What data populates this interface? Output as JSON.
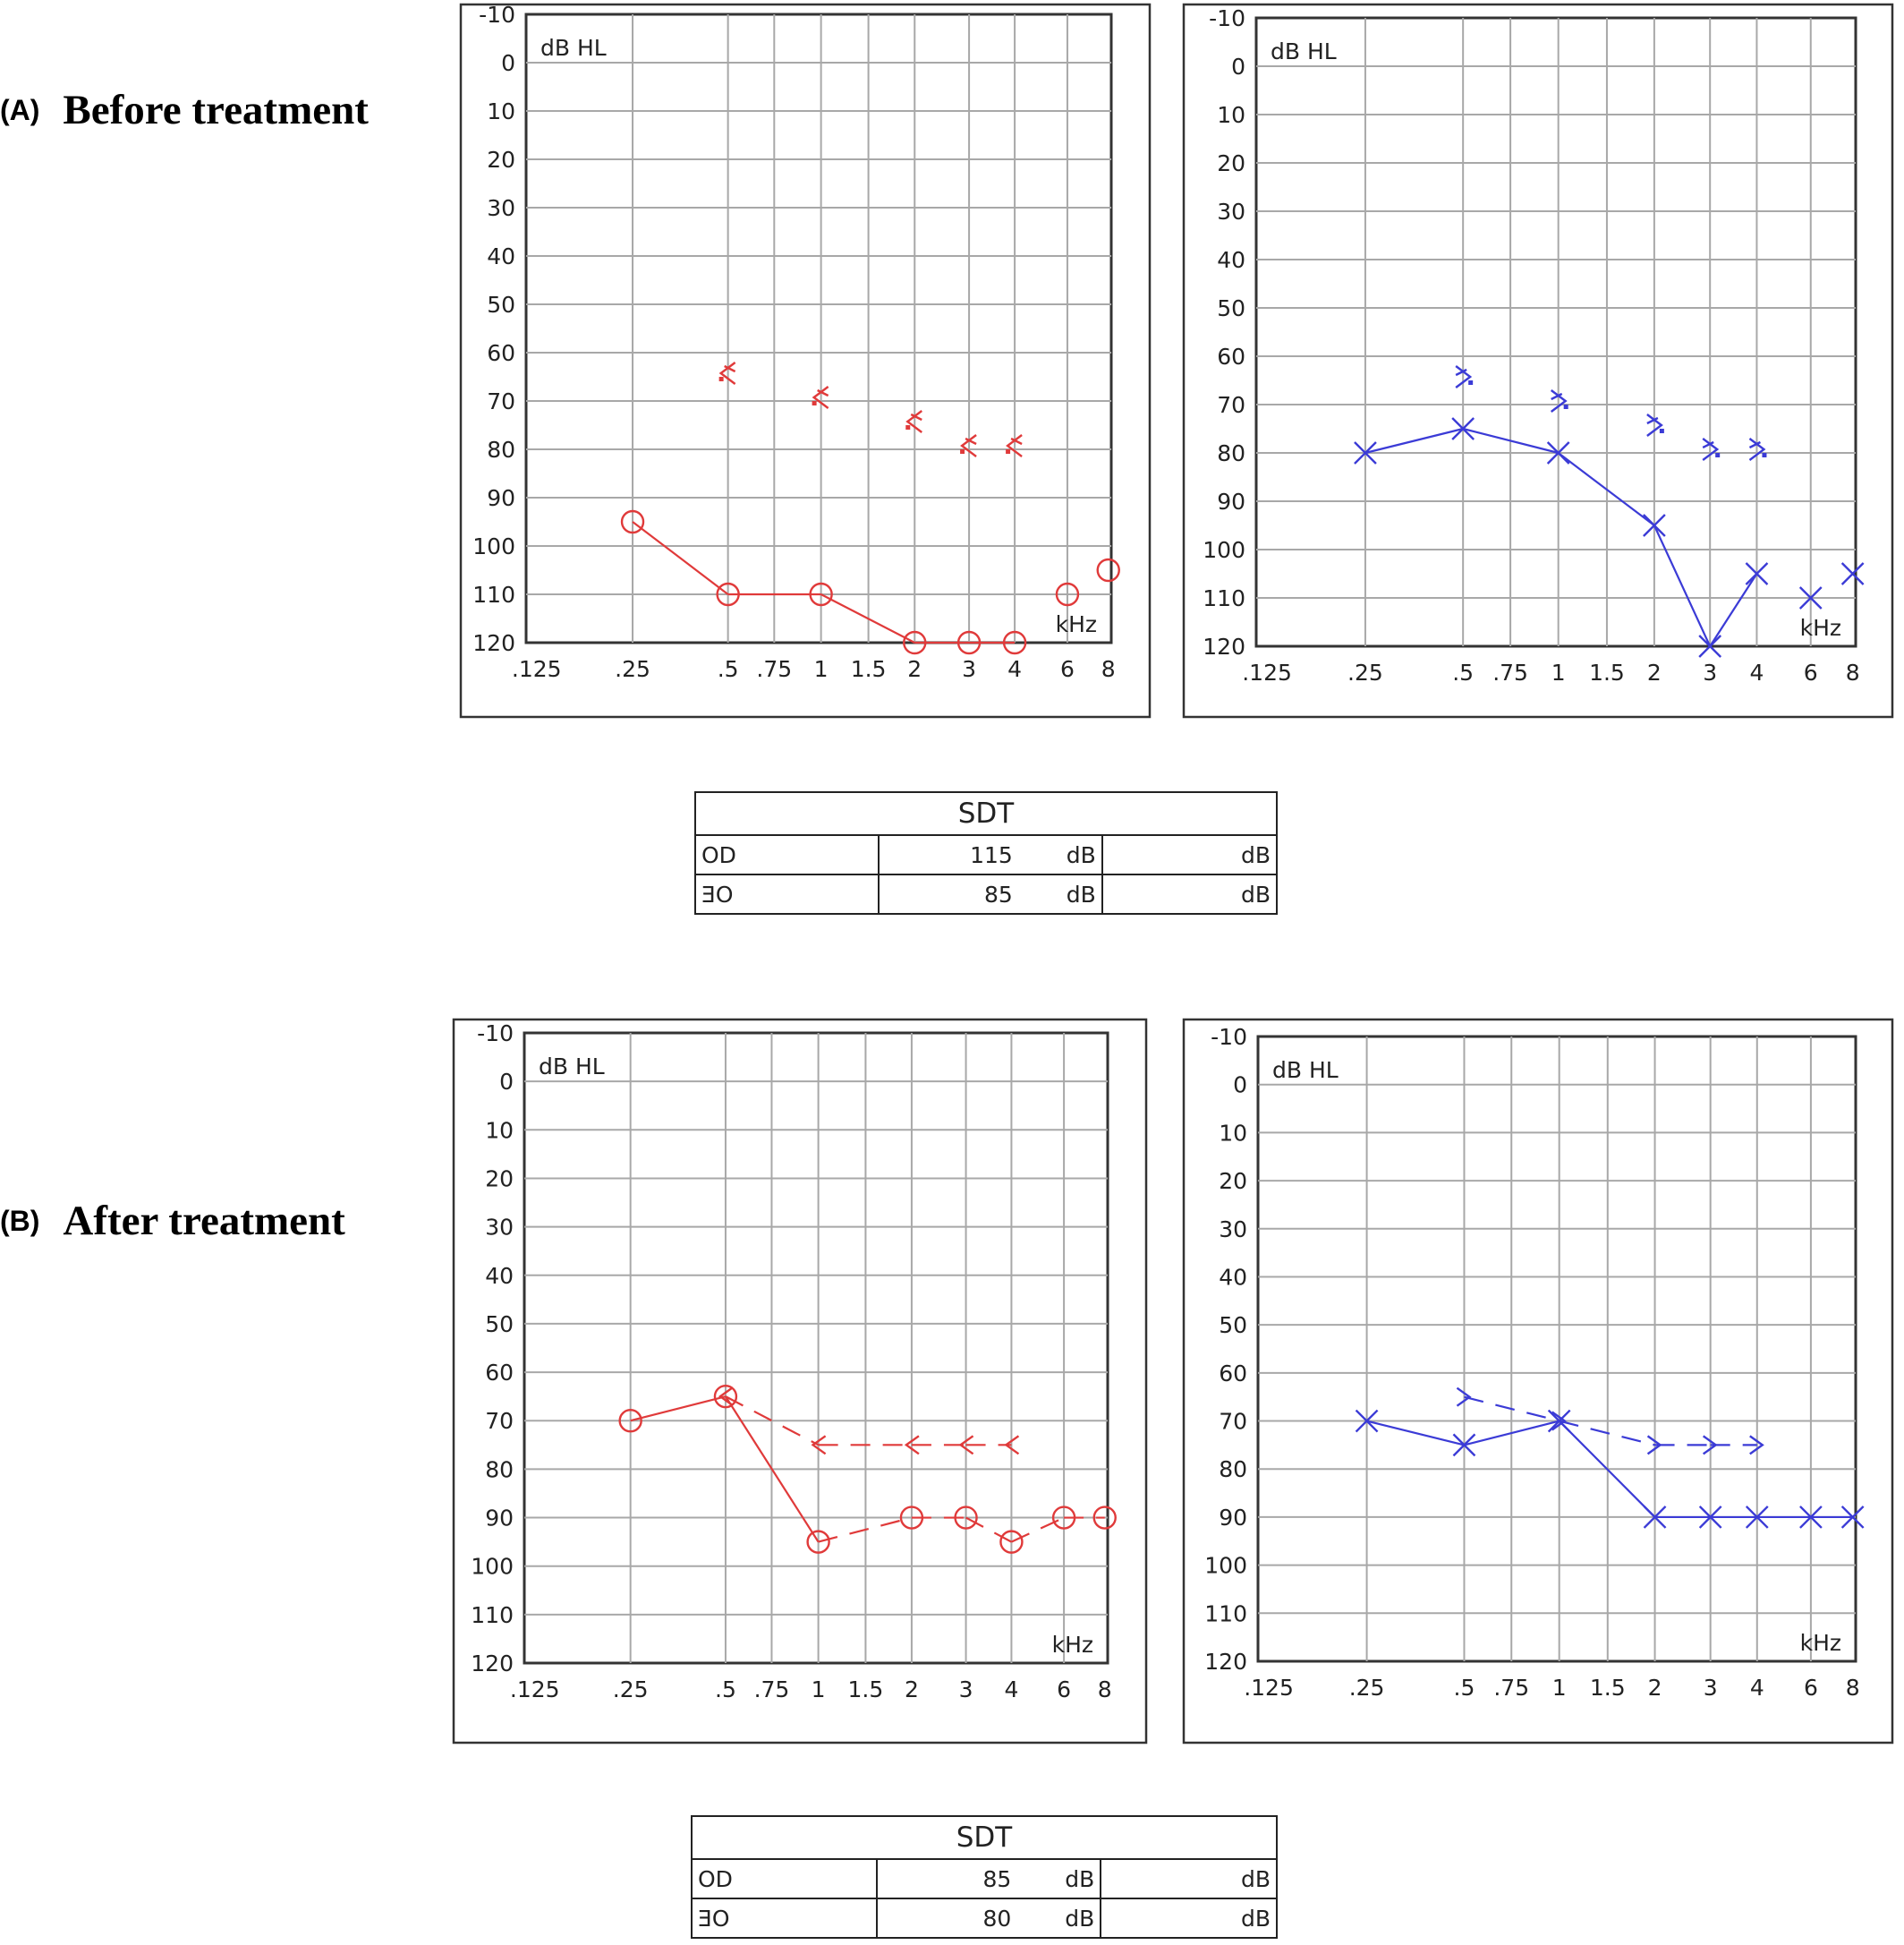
{
  "colors": {
    "right_ear": "#e03a3a",
    "left_ear": "#3b3bd6",
    "grid": "#a8a8a8",
    "frame": "#333333"
  },
  "panels": [
    {
      "letter": "(A)",
      "title": "Before treatment"
    },
    {
      "letter": "(B)",
      "title": "After treatment"
    }
  ],
  "sdt_tables": [
    {
      "header": "SDT",
      "rows": [
        {
          "ear": "OD",
          "value": "115",
          "unit": "dB",
          "unit2": "dB"
        },
        {
          "ear": "OE",
          "value": "85",
          "unit": "dB",
          "unit2": "dB"
        }
      ]
    },
    {
      "header": "SDT",
      "rows": [
        {
          "ear": "OD",
          "value": "85",
          "unit": "dB",
          "unit2": "dB"
        },
        {
          "ear": "OE",
          "value": "80",
          "unit": "dB",
          "unit2": "dB"
        }
      ]
    }
  ],
  "chart_data": [
    {
      "id": "before-right",
      "type": "line",
      "ylabel": "dB HL",
      "xlabel": "kHz",
      "ylim": [
        -10,
        120
      ],
      "y_ticks": [
        -10,
        0,
        10,
        20,
        30,
        40,
        50,
        60,
        70,
        80,
        90,
        100,
        110,
        120
      ],
      "y_inverted": true,
      "x_ticks": [
        ".125",
        ".25",
        ".5",
        ".75",
        "1",
        "1.5",
        "2",
        "3",
        "4",
        "6",
        "8"
      ],
      "series": [
        {
          "kind": "air",
          "marker": "circle",
          "color": "#e03a3a",
          "points": [
            [
              0.25,
              95
            ],
            [
              0.5,
              110
            ],
            [
              1,
              110
            ],
            [
              2,
              120
            ],
            [
              3,
              120
            ],
            [
              4,
              120
            ],
            [
              6,
              110
            ],
            [
              8,
              105
            ]
          ],
          "connected": [
            [
              0,
              1
            ],
            [
              1,
              2
            ],
            [
              2,
              3
            ],
            [
              3,
              4
            ],
            [
              4,
              5
            ]
          ],
          "no_response": [
            5,
            6
          ]
        },
        {
          "kind": "bone",
          "marker": "masked-bone-right",
          "color": "#e03a3a",
          "points": [
            [
              0.5,
              65
            ],
            [
              1,
              70
            ],
            [
              2,
              75
            ],
            [
              3,
              80
            ],
            [
              4,
              80
            ]
          ],
          "connected": []
        }
      ]
    },
    {
      "id": "before-left",
      "type": "line",
      "ylabel": "dB HL",
      "xlabel": "kHz",
      "ylim": [
        -10,
        120
      ],
      "y_ticks": [
        -10,
        0,
        10,
        20,
        30,
        40,
        50,
        60,
        70,
        80,
        90,
        100,
        110,
        120
      ],
      "y_inverted": true,
      "x_ticks": [
        ".125",
        ".25",
        ".5",
        ".75",
        "1",
        "1.5",
        "2",
        "3",
        "4",
        "6",
        "8"
      ],
      "series": [
        {
          "kind": "air",
          "marker": "x",
          "color": "#3b3bd6",
          "points": [
            [
              0.25,
              80
            ],
            [
              0.5,
              75
            ],
            [
              1,
              80
            ],
            [
              2,
              95
            ],
            [
              3,
              120
            ],
            [
              4,
              105
            ],
            [
              6,
              110
            ],
            [
              8,
              105
            ]
          ],
          "connected": [
            [
              0,
              1
            ],
            [
              1,
              2
            ],
            [
              2,
              3
            ],
            [
              3,
              4
            ],
            [
              4,
              5
            ]
          ]
        },
        {
          "kind": "bone",
          "marker": "masked-bone-left",
          "color": "#3b3bd6",
          "points": [
            [
              0.5,
              65
            ],
            [
              1,
              70
            ],
            [
              2,
              75
            ],
            [
              3,
              80
            ],
            [
              4,
              80
            ]
          ],
          "connected": []
        }
      ]
    },
    {
      "id": "after-right",
      "type": "line",
      "ylabel": "dB HL",
      "xlabel": "kHz",
      "ylim": [
        -10,
        120
      ],
      "y_ticks": [
        -10,
        0,
        10,
        20,
        30,
        40,
        50,
        60,
        70,
        80,
        90,
        100,
        110,
        120
      ],
      "y_inverted": true,
      "x_ticks": [
        ".125",
        ".25",
        ".5",
        ".75",
        "1",
        "1.5",
        "2",
        "3",
        "4",
        "6",
        "8"
      ],
      "series": [
        {
          "kind": "air",
          "marker": "circle",
          "color": "#e03a3a",
          "points": [
            [
              0.25,
              70
            ],
            [
              0.5,
              65
            ],
            [
              1,
              95
            ],
            [
              2,
              90
            ],
            [
              3,
              90
            ],
            [
              4,
              95
            ],
            [
              6,
              90
            ],
            [
              8,
              90
            ]
          ],
          "connected": [
            [
              0,
              1
            ],
            [
              1,
              2
            ],
            [
              2,
              3
            ],
            [
              3,
              4
            ],
            [
              4,
              5
            ],
            [
              5,
              6
            ],
            [
              6,
              7
            ]
          ],
          "dashed_segments": [
            [
              2,
              3
            ],
            [
              3,
              4
            ],
            [
              4,
              5
            ],
            [
              5,
              6
            ],
            [
              6,
              7
            ]
          ]
        },
        {
          "kind": "bone",
          "marker": "bone-right",
          "color": "#e03a3a",
          "points": [
            [
              0.5,
              65
            ],
            [
              1,
              75
            ],
            [
              2,
              75
            ],
            [
              3,
              75
            ],
            [
              4,
              75
            ]
          ],
          "connected": [
            [
              0,
              1
            ],
            [
              1,
              2
            ],
            [
              2,
              3
            ],
            [
              3,
              4
            ]
          ],
          "dashed": true
        }
      ]
    },
    {
      "id": "after-left",
      "type": "line",
      "ylabel": "dB HL",
      "xlabel": "kHz",
      "ylim": [
        -10,
        120
      ],
      "y_ticks": [
        -10,
        0,
        10,
        20,
        30,
        40,
        50,
        60,
        70,
        80,
        90,
        100,
        110,
        120
      ],
      "y_inverted": true,
      "x_ticks": [
        ".125",
        ".25",
        ".5",
        ".75",
        "1",
        "1.5",
        "2",
        "3",
        "4",
        "6",
        "8"
      ],
      "series": [
        {
          "kind": "air",
          "marker": "x",
          "color": "#3b3bd6",
          "points": [
            [
              0.25,
              70
            ],
            [
              0.5,
              75
            ],
            [
              1,
              70
            ],
            [
              2,
              90
            ],
            [
              3,
              90
            ],
            [
              4,
              90
            ],
            [
              6,
              90
            ],
            [
              8,
              90
            ]
          ],
          "connected": [
            [
              0,
              1
            ],
            [
              1,
              2
            ],
            [
              2,
              3
            ],
            [
              3,
              4
            ],
            [
              4,
              5
            ],
            [
              5,
              6
            ],
            [
              6,
              7
            ]
          ]
        },
        {
          "kind": "bone",
          "marker": "bone-left",
          "color": "#3b3bd6",
          "points": [
            [
              0.5,
              65
            ],
            [
              1,
              70
            ],
            [
              2,
              75
            ],
            [
              3,
              75
            ],
            [
              4,
              75
            ]
          ],
          "connected": [
            [
              0,
              1
            ],
            [
              1,
              2
            ],
            [
              2,
              3
            ],
            [
              3,
              4
            ]
          ],
          "dashed": true
        }
      ]
    }
  ]
}
